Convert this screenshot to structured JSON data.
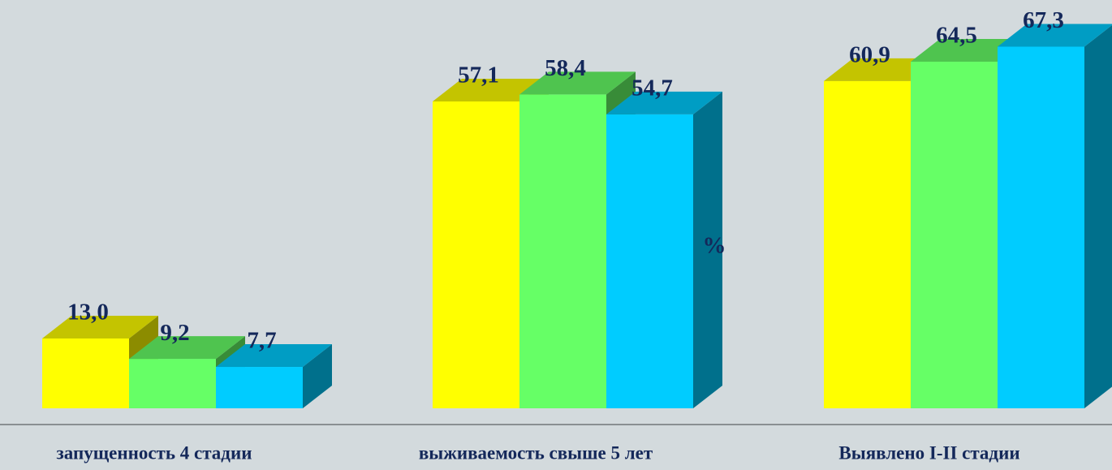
{
  "chart_data": {
    "type": "bar3d",
    "categories": [
      "запущенность 4 стадии",
      "выживаемость свыше 5 лет",
      "Выявлено I-II стадии"
    ],
    "series": [
      {
        "color": "#ffff00",
        "values": [
          13.0,
          57.1,
          60.9
        ],
        "value_labels": [
          "13,0",
          "57,1",
          "60,9"
        ]
      },
      {
        "color": "#66ff66",
        "values": [
          9.2,
          58.4,
          64.5
        ],
        "value_labels": [
          "9,2",
          "58,4",
          "64,5"
        ]
      },
      {
        "color": "#00ccff",
        "values": [
          7.7,
          54.7,
          67.3
        ],
        "value_labels": [
          "7,7",
          "54,7",
          "67,3"
        ]
      }
    ],
    "annotation": "%"
  }
}
